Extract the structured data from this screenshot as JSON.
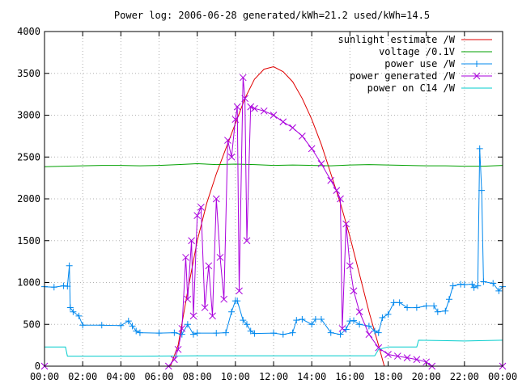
{
  "chart_data": {
    "type": "line",
    "title": "Power log: 2006-06-28 generated/kWh=21.2 used/kWh=14.5",
    "xlabel": "",
    "ylabel": "",
    "xlim": [
      0,
      24
    ],
    "ylim": [
      0,
      4000
    ],
    "x_ticks": [
      {
        "value": 0,
        "label": "00:00"
      },
      {
        "value": 2,
        "label": "02:00"
      },
      {
        "value": 4,
        "label": "04:00"
      },
      {
        "value": 6,
        "label": "06:00"
      },
      {
        "value": 8,
        "label": "08:00"
      },
      {
        "value": 10,
        "label": "10:00"
      },
      {
        "value": 12,
        "label": "12:00"
      },
      {
        "value": 14,
        "label": "14:00"
      },
      {
        "value": 16,
        "label": "16:00"
      },
      {
        "value": 18,
        "label": "18:00"
      },
      {
        "value": 20,
        "label": "20:00"
      },
      {
        "value": 22,
        "label": "22:00"
      },
      {
        "value": 24,
        "label": "00:00"
      }
    ],
    "y_ticks": [
      0,
      500,
      1000,
      1500,
      2000,
      2500,
      3000,
      3500,
      4000
    ],
    "grid": true,
    "legend_position": "top-right",
    "series": [
      {
        "name": "sunlight estimate /W",
        "color": "#e00000",
        "marker": "none",
        "points": [
          [
            0,
            0
          ],
          [
            6.6,
            0
          ],
          [
            7,
            250
          ],
          [
            7.5,
            900
          ],
          [
            8,
            1500
          ],
          [
            8.5,
            1950
          ],
          [
            9,
            2300
          ],
          [
            9.5,
            2600
          ],
          [
            10,
            2900
          ],
          [
            10.5,
            3200
          ],
          [
            11,
            3430
          ],
          [
            11.5,
            3550
          ],
          [
            12,
            3580
          ],
          [
            12.5,
            3520
          ],
          [
            13,
            3400
          ],
          [
            13.5,
            3200
          ],
          [
            14,
            2950
          ],
          [
            14.5,
            2650
          ],
          [
            15,
            2300
          ],
          [
            15.5,
            1950
          ],
          [
            16,
            1550
          ],
          [
            16.5,
            1100
          ],
          [
            17,
            650
          ],
          [
            17.5,
            250
          ],
          [
            17.8,
            0
          ],
          [
            24,
            0
          ]
        ]
      },
      {
        "name": "voltage /0.1V",
        "color": "#00a000",
        "marker": "none",
        "points": [
          [
            0,
            2385
          ],
          [
            1,
            2390
          ],
          [
            2,
            2395
          ],
          [
            3,
            2400
          ],
          [
            4,
            2400
          ],
          [
            5,
            2395
          ],
          [
            6,
            2400
          ],
          [
            7,
            2410
          ],
          [
            8,
            2420
          ],
          [
            9,
            2410
          ],
          [
            10,
            2415
          ],
          [
            11,
            2410
          ],
          [
            12,
            2400
          ],
          [
            13,
            2405
          ],
          [
            14,
            2400
          ],
          [
            15,
            2395
          ],
          [
            16,
            2405
          ],
          [
            17,
            2410
          ],
          [
            18,
            2405
          ],
          [
            19,
            2400
          ],
          [
            20,
            2395
          ],
          [
            21,
            2395
          ],
          [
            22,
            2390
          ],
          [
            23,
            2390
          ],
          [
            24,
            2400
          ]
        ]
      },
      {
        "name": "power use /W",
        "color": "#0088ee",
        "marker": "plus",
        "points": [
          [
            0,
            950
          ],
          [
            0.5,
            945
          ],
          [
            1,
            960
          ],
          [
            1.2,
            955
          ],
          [
            1.3,
            1200
          ],
          [
            1.35,
            700
          ],
          [
            1.5,
            650
          ],
          [
            1.8,
            600
          ],
          [
            2,
            490
          ],
          [
            3,
            490
          ],
          [
            4,
            485
          ],
          [
            4.4,
            540
          ],
          [
            4.6,
            480
          ],
          [
            4.8,
            420
          ],
          [
            5,
            400
          ],
          [
            6,
            395
          ],
          [
            6.8,
            400
          ],
          [
            7.2,
            380
          ],
          [
            7.5,
            500
          ],
          [
            7.8,
            380
          ],
          [
            8,
            395
          ],
          [
            9,
            395
          ],
          [
            9.5,
            400
          ],
          [
            9.8,
            650
          ],
          [
            10,
            780
          ],
          [
            10.1,
            780
          ],
          [
            10.4,
            550
          ],
          [
            10.6,
            500
          ],
          [
            10.8,
            420
          ],
          [
            11,
            390
          ],
          [
            12,
            395
          ],
          [
            12.5,
            380
          ],
          [
            13,
            400
          ],
          [
            13.2,
            550
          ],
          [
            13.5,
            560
          ],
          [
            14,
            500
          ],
          [
            14.2,
            560
          ],
          [
            14.5,
            560
          ],
          [
            15,
            400
          ],
          [
            15.5,
            380
          ],
          [
            15.8,
            440
          ],
          [
            16,
            540
          ],
          [
            16.2,
            545
          ],
          [
            16.5,
            500
          ],
          [
            17,
            480
          ],
          [
            17.3,
            420
          ],
          [
            17.5,
            400
          ],
          [
            17.7,
            580
          ],
          [
            18,
            620
          ],
          [
            18.3,
            760
          ],
          [
            18.6,
            760
          ],
          [
            19,
            700
          ],
          [
            19.5,
            700
          ],
          [
            20,
            720
          ],
          [
            20.4,
            720
          ],
          [
            20.6,
            650
          ],
          [
            21,
            660
          ],
          [
            21.2,
            800
          ],
          [
            21.4,
            960
          ],
          [
            21.8,
            980
          ],
          [
            22,
            975
          ],
          [
            22.4,
            980
          ],
          [
            22.5,
            940
          ],
          [
            22.7,
            960
          ],
          [
            22.8,
            2600
          ],
          [
            22.9,
            2100
          ],
          [
            23,
            1010
          ],
          [
            23.5,
            990
          ],
          [
            23.8,
            900
          ],
          [
            24,
            950
          ]
        ]
      },
      {
        "name": "power generated /W",
        "color": "#aa00dd",
        "marker": "x",
        "points": [
          [
            0,
            0
          ],
          [
            6.5,
            0
          ],
          [
            6.8,
            80
          ],
          [
            7,
            200
          ],
          [
            7.2,
            450
          ],
          [
            7.4,
            1300
          ],
          [
            7.5,
            800
          ],
          [
            7.7,
            1500
          ],
          [
            7.8,
            600
          ],
          [
            8,
            1800
          ],
          [
            8.2,
            1900
          ],
          [
            8.4,
            700
          ],
          [
            8.6,
            1200
          ],
          [
            8.8,
            600
          ],
          [
            9,
            2000
          ],
          [
            9.2,
            1300
          ],
          [
            9.4,
            800
          ],
          [
            9.6,
            2700
          ],
          [
            9.8,
            2500
          ],
          [
            10,
            2950
          ],
          [
            10.1,
            3100
          ],
          [
            10.2,
            900
          ],
          [
            10.4,
            3450
          ],
          [
            10.5,
            3200
          ],
          [
            10.6,
            1500
          ],
          [
            10.8,
            3100
          ],
          [
            11,
            3080
          ],
          [
            11.5,
            3050
          ],
          [
            12,
            3000
          ],
          [
            12.5,
            2920
          ],
          [
            13,
            2850
          ],
          [
            13.5,
            2750
          ],
          [
            14,
            2600
          ],
          [
            14.5,
            2420
          ],
          [
            15,
            2220
          ],
          [
            15.3,
            2100
          ],
          [
            15.5,
            2000
          ],
          [
            15.6,
            450
          ],
          [
            15.8,
            1700
          ],
          [
            16,
            1200
          ],
          [
            16.2,
            900
          ],
          [
            16.5,
            650
          ],
          [
            17,
            380
          ],
          [
            17.5,
            220
          ],
          [
            18,
            140
          ],
          [
            18.5,
            120
          ],
          [
            19,
            100
          ],
          [
            19.5,
            80
          ],
          [
            20,
            50
          ],
          [
            20.3,
            0
          ],
          [
            24,
            0
          ]
        ]
      },
      {
        "name": "power on C14 /W",
        "color": "#00cccc",
        "marker": "none",
        "points": [
          [
            0,
            230
          ],
          [
            1.1,
            230
          ],
          [
            1.2,
            120
          ],
          [
            5,
            120
          ],
          [
            8,
            125
          ],
          [
            12,
            125
          ],
          [
            17.3,
            125
          ],
          [
            17.5,
            200
          ],
          [
            18,
            230
          ],
          [
            19,
            230
          ],
          [
            19.5,
            230
          ],
          [
            19.6,
            310
          ],
          [
            22,
            300
          ],
          [
            24,
            310
          ]
        ]
      }
    ]
  }
}
